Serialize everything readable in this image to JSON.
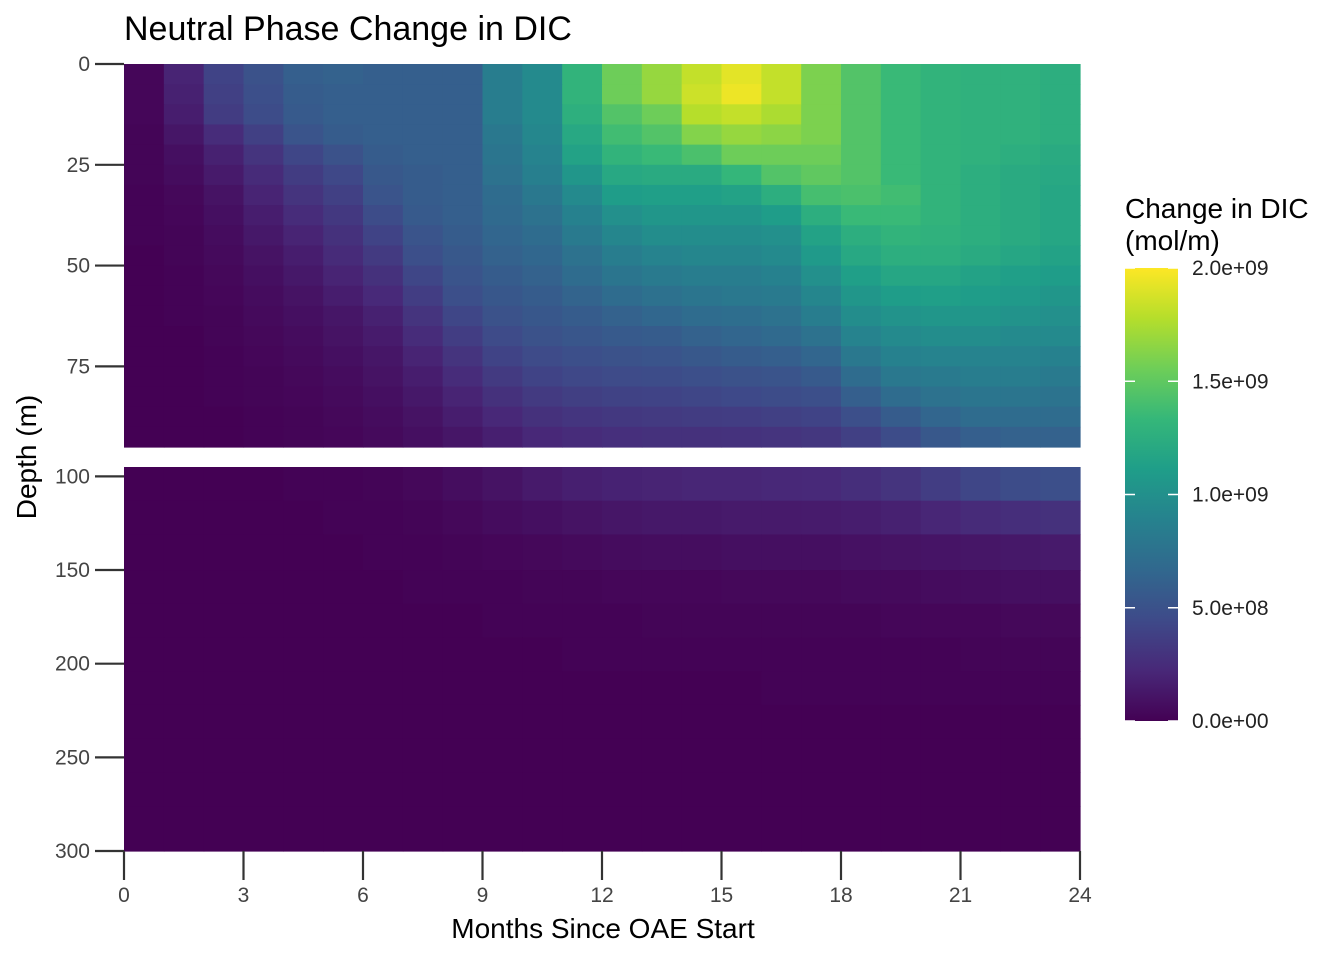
{
  "chart_data": {
    "type": "heatmap",
    "title": "Neutral Phase Change in DIC",
    "xlabel": "Months Since OAE Start",
    "ylabel": "Depth (m)",
    "x_ticks": [
      "0",
      "3",
      "6",
      "9",
      "12",
      "15",
      "18",
      "21",
      "24"
    ],
    "x_tick_values": [
      0,
      3,
      6,
      9,
      12,
      15,
      18,
      21,
      24
    ],
    "xlim": [
      0,
      24
    ],
    "panels": [
      {
        "name": "upper",
        "ylim": [
          0,
          95
        ],
        "y_ticks": [
          "0",
          "25",
          "50",
          "75"
        ],
        "y_tick_values": [
          0,
          25,
          50,
          75
        ],
        "months": [
          0.5,
          1.5,
          2.5,
          3.5,
          4.5,
          5.5,
          6.5,
          7.5,
          8.5,
          9.5,
          10.5,
          11.5,
          12.5,
          13.5,
          14.5,
          15.5,
          16.5,
          17.5,
          18.5,
          19.5,
          20.5,
          21.5,
          22.5,
          23.5
        ],
        "depth_bins": [
          [
            0,
            5
          ],
          [
            5,
            10
          ],
          [
            10,
            15
          ],
          [
            15,
            20
          ],
          [
            20,
            25
          ],
          [
            25,
            30
          ],
          [
            30,
            35
          ],
          [
            35,
            40
          ],
          [
            40,
            45
          ],
          [
            45,
            50
          ],
          [
            50,
            55
          ],
          [
            55,
            60
          ],
          [
            60,
            65
          ],
          [
            65,
            70
          ],
          [
            70,
            75
          ],
          [
            75,
            80
          ],
          [
            80,
            85
          ],
          [
            85,
            90
          ],
          [
            90,
            95
          ]
        ],
        "values": [
          [
            0.03,
            0.2,
            0.4,
            0.5,
            0.6,
            0.62,
            0.6,
            0.6,
            0.6,
            0.85,
            0.95,
            1.3,
            1.55,
            1.68,
            1.82,
            1.92,
            1.82,
            1.6,
            1.45,
            1.35,
            1.3,
            1.28,
            1.28,
            1.25
          ],
          [
            0.03,
            0.18,
            0.38,
            0.48,
            0.58,
            0.6,
            0.6,
            0.6,
            0.6,
            0.85,
            0.95,
            1.3,
            1.55,
            1.68,
            1.85,
            1.95,
            1.82,
            1.6,
            1.45,
            1.35,
            1.3,
            1.28,
            1.28,
            1.25
          ],
          [
            0.03,
            0.16,
            0.35,
            0.46,
            0.56,
            0.6,
            0.6,
            0.6,
            0.6,
            0.85,
            0.95,
            1.26,
            1.45,
            1.55,
            1.78,
            1.82,
            1.75,
            1.6,
            1.45,
            1.35,
            1.3,
            1.28,
            1.28,
            1.25
          ],
          [
            0.02,
            0.12,
            0.25,
            0.38,
            0.52,
            0.58,
            0.6,
            0.6,
            0.6,
            0.8,
            0.93,
            1.2,
            1.38,
            1.45,
            1.62,
            1.68,
            1.65,
            1.6,
            1.45,
            1.35,
            1.3,
            1.28,
            1.28,
            1.25
          ],
          [
            0.02,
            0.08,
            0.18,
            0.3,
            0.42,
            0.5,
            0.58,
            0.6,
            0.6,
            0.78,
            0.9,
            1.15,
            1.3,
            1.35,
            1.42,
            1.55,
            1.55,
            1.55,
            1.45,
            1.35,
            1.3,
            1.28,
            1.25,
            1.22
          ],
          [
            0.02,
            0.06,
            0.14,
            0.24,
            0.35,
            0.43,
            0.55,
            0.58,
            0.6,
            0.75,
            0.86,
            1.05,
            1.2,
            1.22,
            1.22,
            1.32,
            1.45,
            1.5,
            1.45,
            1.35,
            1.3,
            1.25,
            1.22,
            1.2
          ],
          [
            0.01,
            0.04,
            0.1,
            0.2,
            0.3,
            0.38,
            0.52,
            0.58,
            0.6,
            0.7,
            0.8,
            0.95,
            1.1,
            1.12,
            1.12,
            1.15,
            1.25,
            1.4,
            1.42,
            1.38,
            1.3,
            1.25,
            1.22,
            1.18
          ],
          [
            0.01,
            0.03,
            0.08,
            0.16,
            0.25,
            0.33,
            0.46,
            0.56,
            0.6,
            0.68,
            0.75,
            0.88,
            1.0,
            1.05,
            1.05,
            1.05,
            1.1,
            1.25,
            1.35,
            1.35,
            1.3,
            1.25,
            1.22,
            1.18
          ],
          [
            0.01,
            0.02,
            0.06,
            0.13,
            0.2,
            0.28,
            0.4,
            0.52,
            0.58,
            0.65,
            0.7,
            0.82,
            0.92,
            0.98,
            0.98,
            0.98,
            1.0,
            1.15,
            1.25,
            1.3,
            1.28,
            1.25,
            1.22,
            1.18
          ],
          [
            0.0,
            0.02,
            0.05,
            0.1,
            0.16,
            0.24,
            0.34,
            0.48,
            0.55,
            0.62,
            0.66,
            0.75,
            0.85,
            0.9,
            0.92,
            0.92,
            0.95,
            1.08,
            1.2,
            1.25,
            1.25,
            1.22,
            1.18,
            1.15
          ],
          [
            0.0,
            0.01,
            0.04,
            0.08,
            0.13,
            0.2,
            0.28,
            0.42,
            0.52,
            0.58,
            0.62,
            0.7,
            0.78,
            0.82,
            0.85,
            0.85,
            0.88,
            1.0,
            1.12,
            1.18,
            1.18,
            1.15,
            1.12,
            1.1
          ],
          [
            0.0,
            0.01,
            0.03,
            0.06,
            0.1,
            0.16,
            0.23,
            0.36,
            0.48,
            0.54,
            0.58,
            0.64,
            0.7,
            0.74,
            0.78,
            0.8,
            0.82,
            0.92,
            1.05,
            1.1,
            1.12,
            1.1,
            1.08,
            1.05
          ],
          [
            0.0,
            0.01,
            0.02,
            0.05,
            0.08,
            0.12,
            0.18,
            0.3,
            0.42,
            0.5,
            0.54,
            0.58,
            0.62,
            0.66,
            0.7,
            0.72,
            0.75,
            0.85,
            0.98,
            1.02,
            1.05,
            1.05,
            1.02,
            1.0
          ],
          [
            0.0,
            0.0,
            0.02,
            0.04,
            0.06,
            0.1,
            0.15,
            0.25,
            0.36,
            0.45,
            0.5,
            0.53,
            0.56,
            0.58,
            0.62,
            0.65,
            0.68,
            0.75,
            0.9,
            0.95,
            0.98,
            0.98,
            0.95,
            0.95
          ],
          [
            0.0,
            0.0,
            0.01,
            0.03,
            0.05,
            0.08,
            0.12,
            0.2,
            0.3,
            0.4,
            0.45,
            0.48,
            0.5,
            0.52,
            0.55,
            0.58,
            0.6,
            0.65,
            0.8,
            0.88,
            0.9,
            0.9,
            0.9,
            0.88
          ],
          [
            0.0,
            0.0,
            0.01,
            0.02,
            0.04,
            0.06,
            0.1,
            0.16,
            0.25,
            0.34,
            0.4,
            0.43,
            0.45,
            0.46,
            0.48,
            0.5,
            0.52,
            0.56,
            0.7,
            0.8,
            0.82,
            0.85,
            0.85,
            0.82
          ],
          [
            0.0,
            0.0,
            0.01,
            0.02,
            0.03,
            0.05,
            0.08,
            0.13,
            0.2,
            0.28,
            0.34,
            0.37,
            0.39,
            0.4,
            0.42,
            0.44,
            0.46,
            0.48,
            0.6,
            0.7,
            0.75,
            0.78,
            0.78,
            0.76
          ],
          [
            0.0,
            0.0,
            0.0,
            0.01,
            0.02,
            0.04,
            0.06,
            0.1,
            0.16,
            0.22,
            0.28,
            0.31,
            0.33,
            0.34,
            0.35,
            0.36,
            0.38,
            0.4,
            0.48,
            0.58,
            0.65,
            0.7,
            0.7,
            0.7
          ],
          [
            0.0,
            0.0,
            0.0,
            0.01,
            0.02,
            0.03,
            0.05,
            0.08,
            0.12,
            0.17,
            0.22,
            0.25,
            0.27,
            0.28,
            0.28,
            0.29,
            0.3,
            0.32,
            0.38,
            0.46,
            0.55,
            0.6,
            0.62,
            0.62
          ]
        ]
      },
      {
        "name": "lower",
        "ylim": [
          95,
          300
        ],
        "y_ticks": [
          "100",
          "150",
          "200",
          "250",
          "300"
        ],
        "y_tick_values": [
          100,
          150,
          200,
          250,
          300
        ],
        "months": [
          0.5,
          1.5,
          2.5,
          3.5,
          4.5,
          5.5,
          6.5,
          7.5,
          8.5,
          9.5,
          10.5,
          11.5,
          12.5,
          13.5,
          14.5,
          15.5,
          16.5,
          17.5,
          18.5,
          19.5,
          20.5,
          21.5,
          22.5,
          23.5
        ],
        "depth_bins": [
          [
            95,
            113
          ],
          [
            113,
            131
          ],
          [
            131,
            150
          ],
          [
            150,
            168
          ],
          [
            168,
            186
          ],
          [
            186,
            204
          ],
          [
            204,
            222
          ],
          [
            222,
            240
          ],
          [
            240,
            258
          ],
          [
            258,
            276
          ],
          [
            276,
            300
          ]
        ],
        "values": [
          [
            0.0,
            0.0,
            0.0,
            0.0,
            0.01,
            0.01,
            0.02,
            0.04,
            0.07,
            0.1,
            0.14,
            0.17,
            0.19,
            0.2,
            0.21,
            0.21,
            0.22,
            0.23,
            0.26,
            0.3,
            0.36,
            0.42,
            0.46,
            0.48
          ],
          [
            0.0,
            0.0,
            0.0,
            0.0,
            0.0,
            0.01,
            0.01,
            0.02,
            0.04,
            0.06,
            0.08,
            0.1,
            0.12,
            0.13,
            0.13,
            0.14,
            0.14,
            0.15,
            0.16,
            0.18,
            0.21,
            0.24,
            0.26,
            0.28
          ],
          [
            0.0,
            0.0,
            0.0,
            0.0,
            0.0,
            0.0,
            0.01,
            0.01,
            0.02,
            0.03,
            0.04,
            0.05,
            0.06,
            0.07,
            0.07,
            0.08,
            0.08,
            0.08,
            0.09,
            0.1,
            0.11,
            0.12,
            0.13,
            0.14
          ],
          [
            0.0,
            0.0,
            0.0,
            0.0,
            0.0,
            0.0,
            0.0,
            0.01,
            0.01,
            0.01,
            0.02,
            0.02,
            0.03,
            0.03,
            0.03,
            0.04,
            0.04,
            0.04,
            0.05,
            0.05,
            0.06,
            0.07,
            0.08,
            0.08
          ],
          [
            0.0,
            0.0,
            0.0,
            0.0,
            0.0,
            0.0,
            0.0,
            0.0,
            0.0,
            0.01,
            0.01,
            0.01,
            0.01,
            0.02,
            0.02,
            0.02,
            0.02,
            0.02,
            0.02,
            0.03,
            0.03,
            0.03,
            0.04,
            0.04
          ],
          [
            0.0,
            0.0,
            0.0,
            0.0,
            0.0,
            0.0,
            0.0,
            0.0,
            0.0,
            0.0,
            0.0,
            0.01,
            0.01,
            0.01,
            0.01,
            0.01,
            0.01,
            0.01,
            0.01,
            0.01,
            0.01,
            0.02,
            0.02,
            0.02
          ],
          [
            0.0,
            0.0,
            0.0,
            0.0,
            0.0,
            0.0,
            0.0,
            0.0,
            0.0,
            0.0,
            0.0,
            0.0,
            0.0,
            0.0,
            0.0,
            0.0,
            0.01,
            0.01,
            0.01,
            0.01,
            0.01,
            0.01,
            0.01,
            0.01
          ],
          [
            0.0,
            0.0,
            0.0,
            0.0,
            0.0,
            0.0,
            0.0,
            0.0,
            0.0,
            0.0,
            0.0,
            0.0,
            0.0,
            0.0,
            0.0,
            0.0,
            0.0,
            0.0,
            0.0,
            0.0,
            0.0,
            0.0,
            0.0,
            0.0
          ],
          [
            0.0,
            0.0,
            0.0,
            0.0,
            0.0,
            0.0,
            0.0,
            0.0,
            0.0,
            0.0,
            0.0,
            0.0,
            0.0,
            0.0,
            0.0,
            0.0,
            0.0,
            0.0,
            0.0,
            0.0,
            0.0,
            0.0,
            0.0,
            0.0
          ],
          [
            0.0,
            0.0,
            0.0,
            0.0,
            0.0,
            0.0,
            0.0,
            0.0,
            0.0,
            0.0,
            0.0,
            0.0,
            0.0,
            0.0,
            0.0,
            0.0,
            0.0,
            0.0,
            0.0,
            0.0,
            0.0,
            0.0,
            0.0,
            0.0
          ],
          [
            0.0,
            0.0,
            0.0,
            0.0,
            0.0,
            0.0,
            0.0,
            0.0,
            0.0,
            0.0,
            0.0,
            0.0,
            0.0,
            0.0,
            0.0,
            0.0,
            0.0,
            0.0,
            0.0,
            0.0,
            0.0,
            0.0,
            0.0,
            0.0
          ]
        ]
      }
    ],
    "value_unit_multiplier": 1000000000.0,
    "colorscale": "viridis",
    "viridis_stops": [
      "#440154",
      "#482878",
      "#3e4a89",
      "#31688e",
      "#26828e",
      "#1f9e89",
      "#35b779",
      "#6ece58",
      "#b5de2b",
      "#fde725"
    ],
    "legend": {
      "title_line1": "Change in DIC",
      "title_line2": "(mol/m)",
      "range": [
        0,
        2000000000
      ],
      "tick_values": [
        0,
        500000000,
        1000000000,
        1500000000,
        2000000000
      ],
      "tick_labels": [
        "0.0e+00",
        "5.0e+08",
        "1.0e+09",
        "1.5e+09",
        "2.0e+09"
      ],
      "placement": "right"
    }
  }
}
